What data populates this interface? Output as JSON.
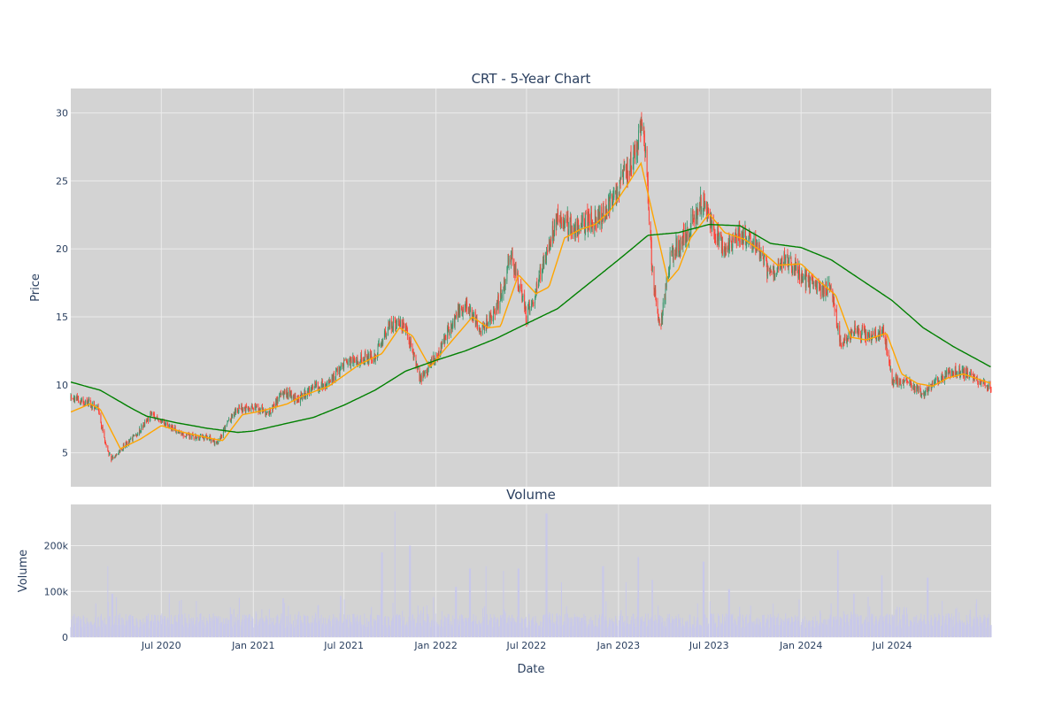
{
  "chart_data": {
    "type": "candlestick",
    "title": "CRT - 5-Year Chart",
    "volume_title": "Volume",
    "xlabel": "Date",
    "ylabel": "Price",
    "volume_ylabel": "Volume",
    "x_range": [
      "2020-01-02",
      "2025-01-15"
    ],
    "price_ylim": [
      2.5,
      31.8
    ],
    "volume_ylim": [
      0,
      290000
    ],
    "x_ticks": [
      {
        "date": "2020-07-01",
        "label": "Jul 2020"
      },
      {
        "date": "2021-01-01",
        "label": "Jan 2021"
      },
      {
        "date": "2021-07-01",
        "label": "Jul 2021"
      },
      {
        "date": "2022-01-01",
        "label": "Jan 2022"
      },
      {
        "date": "2022-07-01",
        "label": "Jul 2022"
      },
      {
        "date": "2023-01-01",
        "label": "Jan 2023"
      },
      {
        "date": "2023-07-01",
        "label": "Jul 2023"
      },
      {
        "date": "2024-01-01",
        "label": "Jan 2024"
      },
      {
        "date": "2024-07-01",
        "label": "Jul 2024"
      }
    ],
    "price_ticks": [
      {
        "value": 5,
        "label": "5"
      },
      {
        "value": 10,
        "label": "10"
      },
      {
        "value": 15,
        "label": "15"
      },
      {
        "value": 20,
        "label": "20"
      },
      {
        "value": 25,
        "label": "25"
      },
      {
        "value": 30,
        "label": "30"
      }
    ],
    "volume_ticks": [
      {
        "value": 0,
        "label": "0"
      },
      {
        "value": 100000,
        "label": "100k"
      },
      {
        "value": 200000,
        "label": "200k"
      }
    ],
    "colors": {
      "up": "#3d9970",
      "down": "#ff4136",
      "ma_short": "#ffa500",
      "ma_long": "#008000",
      "volume": "#c8c8ea",
      "plot_bg": "#d3d3d3",
      "grid": "#ebebeb"
    },
    "price_path": [
      [
        "2020-01-02",
        9.0
      ],
      [
        "2020-02-01",
        8.8
      ],
      [
        "2020-02-25",
        8.3
      ],
      [
        "2020-03-12",
        5.5
      ],
      [
        "2020-03-23",
        4.5
      ],
      [
        "2020-04-20",
        5.6
      ],
      [
        "2020-05-15",
        6.5
      ],
      [
        "2020-06-10",
        7.8
      ],
      [
        "2020-07-10",
        7.1
      ],
      [
        "2020-08-10",
        6.4
      ],
      [
        "2020-09-10",
        6.1
      ],
      [
        "2020-10-01",
        6.2
      ],
      [
        "2020-10-20",
        5.6
      ],
      [
        "2020-11-10",
        7.2
      ],
      [
        "2020-12-01",
        8.2
      ],
      [
        "2021-01-01",
        8.4
      ],
      [
        "2021-02-01",
        7.9
      ],
      [
        "2021-03-01",
        9.5
      ],
      [
        "2021-04-01",
        8.9
      ],
      [
        "2021-05-01",
        9.9
      ],
      [
        "2021-06-01",
        10.1
      ],
      [
        "2021-07-01",
        11.5
      ],
      [
        "2021-08-01",
        11.9
      ],
      [
        "2021-09-01",
        12.1
      ],
      [
        "2021-10-01",
        14.5
      ],
      [
        "2021-11-01",
        14.2
      ],
      [
        "2021-12-01",
        10.5
      ],
      [
        "2022-01-01",
        12.0
      ],
      [
        "2022-02-01",
        14.5
      ],
      [
        "2022-03-01",
        16.0
      ],
      [
        "2022-04-01",
        14.0
      ],
      [
        "2022-05-01",
        15.5
      ],
      [
        "2022-06-01",
        19.5
      ],
      [
        "2022-07-01",
        15.0
      ],
      [
        "2022-08-01",
        18.5
      ],
      [
        "2022-09-01",
        22.5
      ],
      [
        "2022-10-01",
        21.5
      ],
      [
        "2022-11-01",
        22.0
      ],
      [
        "2022-12-01",
        22.5
      ],
      [
        "2023-01-01",
        24.5
      ],
      [
        "2023-02-01",
        27.0
      ],
      [
        "2023-02-20",
        29.5
      ],
      [
        "2023-03-10",
        18.0
      ],
      [
        "2023-03-25",
        14.0
      ],
      [
        "2023-04-15",
        19.5
      ],
      [
        "2023-05-15",
        21.0
      ],
      [
        "2023-06-15",
        23.5
      ],
      [
        "2023-07-10",
        21.5
      ],
      [
        "2023-08-01",
        20.0
      ],
      [
        "2023-09-01",
        21.0
      ],
      [
        "2023-10-01",
        20.5
      ],
      [
        "2023-11-01",
        18.0
      ],
      [
        "2023-12-01",
        19.5
      ],
      [
        "2024-01-01",
        18.0
      ],
      [
        "2024-02-01",
        17.0
      ],
      [
        "2024-03-01",
        17.2
      ],
      [
        "2024-03-20",
        13.0
      ],
      [
        "2024-04-20",
        14.0
      ],
      [
        "2024-05-20",
        13.5
      ],
      [
        "2024-06-15",
        14.0
      ],
      [
        "2024-07-01",
        10.3
      ],
      [
        "2024-08-01",
        10.2
      ],
      [
        "2024-09-01",
        9.3
      ],
      [
        "2024-10-01",
        10.5
      ],
      [
        "2024-11-01",
        11.0
      ],
      [
        "2024-12-01",
        10.8
      ],
      [
        "2025-01-15",
        9.8
      ]
    ],
    "ma_short_path": [
      [
        "2020-01-02",
        8.0
      ],
      [
        "2020-02-10",
        8.6
      ],
      [
        "2020-03-01",
        8.2
      ],
      [
        "2020-04-10",
        5.3
      ],
      [
        "2020-05-20",
        6.0
      ],
      [
        "2020-07-01",
        7.0
      ],
      [
        "2020-08-15",
        6.5
      ],
      [
        "2020-10-15",
        6.0
      ],
      [
        "2020-11-01",
        5.9
      ],
      [
        "2020-12-10",
        7.8
      ],
      [
        "2021-01-20",
        8.1
      ],
      [
        "2021-03-10",
        8.6
      ],
      [
        "2021-04-10",
        9.2
      ],
      [
        "2021-06-01",
        9.9
      ],
      [
        "2021-08-01",
        11.5
      ],
      [
        "2021-09-15",
        12.3
      ],
      [
        "2021-10-20",
        14.2
      ],
      [
        "2021-11-15",
        13.6
      ],
      [
        "2021-12-20",
        11.3
      ],
      [
        "2022-02-01",
        13.2
      ],
      [
        "2022-03-15",
        15.0
      ],
      [
        "2022-04-15",
        14.2
      ],
      [
        "2022-05-10",
        14.3
      ],
      [
        "2022-06-15",
        18.1
      ],
      [
        "2022-07-20",
        16.7
      ],
      [
        "2022-08-15",
        17.2
      ],
      [
        "2022-09-15",
        20.8
      ],
      [
        "2022-10-15",
        21.4
      ],
      [
        "2022-11-15",
        21.8
      ],
      [
        "2022-12-15",
        22.8
      ],
      [
        "2023-01-15",
        24.5
      ],
      [
        "2023-02-15",
        26.3
      ],
      [
        "2023-03-15",
        21.8
      ],
      [
        "2023-04-10",
        17.6
      ],
      [
        "2023-05-01",
        18.5
      ],
      [
        "2023-05-25",
        20.8
      ],
      [
        "2023-07-01",
        22.6
      ],
      [
        "2023-08-01",
        21.2
      ],
      [
        "2023-09-10",
        20.7
      ],
      [
        "2023-10-15",
        19.8
      ],
      [
        "2023-11-15",
        18.8
      ],
      [
        "2024-01-01",
        18.9
      ],
      [
        "2024-02-10",
        17.5
      ],
      [
        "2024-03-10",
        16.6
      ],
      [
        "2024-04-10",
        13.5
      ],
      [
        "2024-05-10",
        13.3
      ],
      [
        "2024-06-20",
        13.8
      ],
      [
        "2024-07-20",
        10.8
      ],
      [
        "2024-08-20",
        10.1
      ],
      [
        "2024-09-20",
        9.9
      ],
      [
        "2024-10-20",
        10.5
      ],
      [
        "2024-11-20",
        10.8
      ],
      [
        "2025-01-15",
        10.1
      ]
    ],
    "ma_long_path": [
      [
        "2020-01-02",
        10.2
      ],
      [
        "2020-03-01",
        9.6
      ],
      [
        "2020-05-01",
        8.3
      ],
      [
        "2020-06-01",
        7.7
      ],
      [
        "2020-08-01",
        7.2
      ],
      [
        "2020-10-01",
        6.8
      ],
      [
        "2020-12-01",
        6.5
      ],
      [
        "2021-01-01",
        6.6
      ],
      [
        "2021-03-01",
        7.1
      ],
      [
        "2021-05-01",
        7.6
      ],
      [
        "2021-07-01",
        8.5
      ],
      [
        "2021-09-01",
        9.6
      ],
      [
        "2021-11-01",
        11.0
      ],
      [
        "2022-01-01",
        11.8
      ],
      [
        "2022-03-01",
        12.5
      ],
      [
        "2022-05-01",
        13.4
      ],
      [
        "2022-07-01",
        14.5
      ],
      [
        "2022-09-01",
        15.6
      ],
      [
        "2022-11-01",
        17.4
      ],
      [
        "2023-01-01",
        19.2
      ],
      [
        "2023-03-01",
        21.0
      ],
      [
        "2023-05-01",
        21.2
      ],
      [
        "2023-07-01",
        21.8
      ],
      [
        "2023-09-01",
        21.7
      ],
      [
        "2023-11-01",
        20.4
      ],
      [
        "2024-01-01",
        20.1
      ],
      [
        "2024-03-01",
        19.2
      ],
      [
        "2024-05-01",
        17.7
      ],
      [
        "2024-07-01",
        16.2
      ],
      [
        "2024-09-01",
        14.2
      ],
      [
        "2024-11-01",
        12.8
      ],
      [
        "2025-01-15",
        11.3
      ]
    ],
    "volume_spikes": [
      [
        "2020-03-15",
        155000
      ],
      [
        "2020-03-25",
        95000
      ],
      [
        "2020-11-15",
        65000
      ],
      [
        "2021-03-01",
        85000
      ],
      [
        "2021-05-10",
        70000
      ],
      [
        "2021-06-25",
        90000
      ],
      [
        "2021-09-15",
        185000
      ],
      [
        "2021-10-10",
        275000
      ],
      [
        "2021-11-10",
        200000
      ],
      [
        "2022-02-10",
        110000
      ],
      [
        "2022-03-10",
        150000
      ],
      [
        "2022-04-10",
        155000
      ],
      [
        "2022-05-15",
        145000
      ],
      [
        "2022-06-15",
        150000
      ],
      [
        "2022-08-10",
        270000
      ],
      [
        "2022-09-10",
        120000
      ],
      [
        "2022-12-01",
        155000
      ],
      [
        "2023-01-15",
        120000
      ],
      [
        "2023-02-10",
        175000
      ],
      [
        "2023-03-10",
        125000
      ],
      [
        "2023-06-20",
        165000
      ],
      [
        "2023-08-10",
        105000
      ],
      [
        "2024-03-15",
        190000
      ],
      [
        "2024-04-15",
        95000
      ],
      [
        "2024-06-10",
        135000
      ],
      [
        "2024-09-10",
        130000
      ]
    ]
  }
}
